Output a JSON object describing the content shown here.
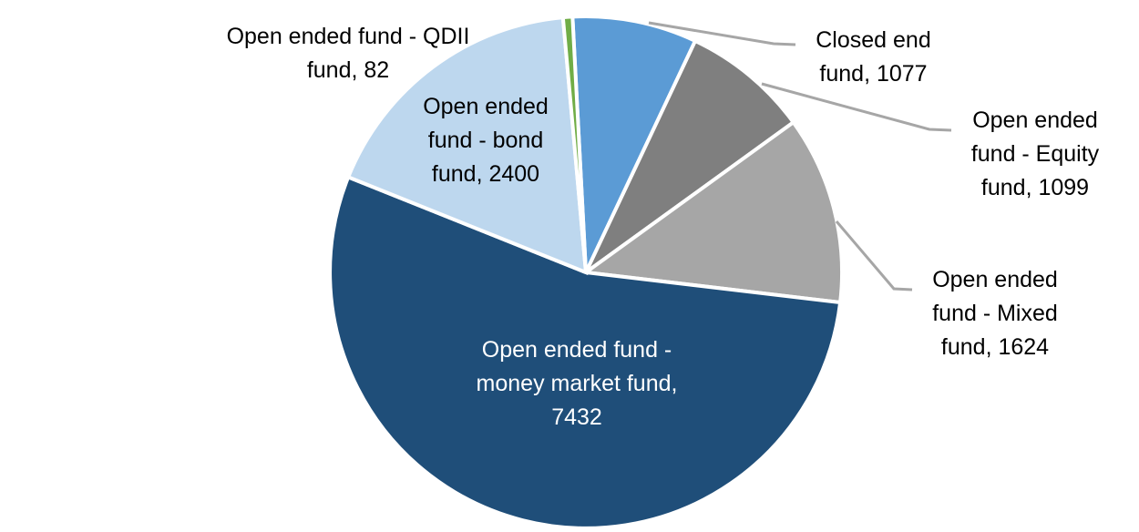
{
  "chart_data": {
    "type": "pie",
    "title": "",
    "legend": "none",
    "start_angle_deg": -3,
    "total": 13714,
    "data_label_format": "category, value",
    "slices": [
      {
        "key": "closed_end",
        "label": "Closed end fund",
        "value": 1077,
        "color": "#5b9bd5"
      },
      {
        "key": "equity",
        "label": "Open ended fund - Equity fund",
        "value": 1099,
        "color": "#7f7f7f"
      },
      {
        "key": "mixed",
        "label": "Open ended fund - Mixed fund",
        "value": 1624,
        "color": "#a6a6a6"
      },
      {
        "key": "money_market",
        "label": "Open ended fund - money market fund",
        "value": 7432,
        "color": "#1f4e79"
      },
      {
        "key": "bond",
        "label": "Open ended fund - bond fund",
        "value": 2400,
        "color": "#bdd7ee"
      },
      {
        "key": "qdii",
        "label": "Open ended fund - QDII fund",
        "value": 82,
        "color": "#70ad47"
      }
    ]
  },
  "labels": {
    "qdii": "Open ended fund - QDII\nfund, 82",
    "bond": "Open ended\nfund - bond\nfund, 2400",
    "closed_end": "Closed end\nfund, 1077",
    "equity": "Open ended\nfund - Equity\nfund, 1099",
    "mixed": "Open ended\nfund - Mixed\nfund, 1624",
    "money_market": "Open ended fund -\nmoney market fund,\n7432"
  },
  "colors": {
    "background": "#ffffff",
    "slice_border": "#ffffff",
    "leader_line": "#a6a6a6",
    "label_text": "#000000",
    "label_text_on_dark": "#ffffff"
  }
}
